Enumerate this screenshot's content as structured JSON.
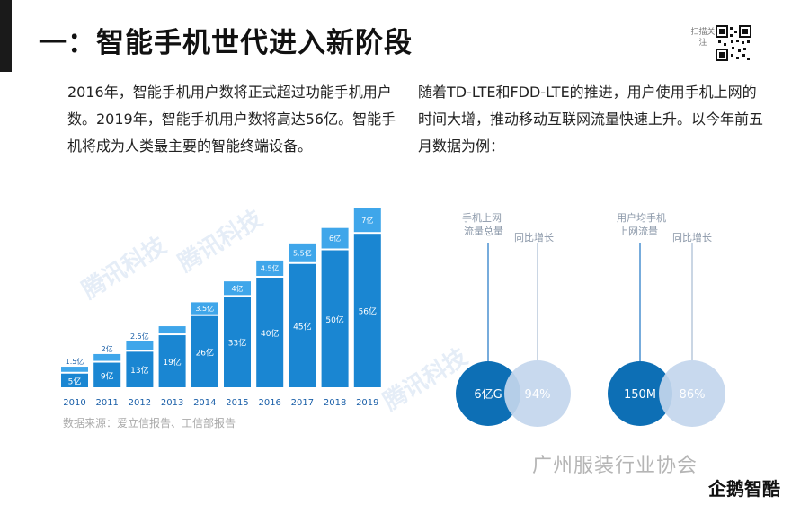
{
  "header": {
    "title": "一：智能手机世代进入新阶段",
    "qr_label": "扫描关注"
  },
  "paragraphs": {
    "left": "2016年，智能手机用户数将正式超过功能手机用户数。2019年，智能手机用户数将高达56亿。智能手机将成为人类最主要的智能终端设备。",
    "right": "随着TD-LTE和FDD-LTE的推进，用户使用手机上网的时间大增，推动移动互联网流量快速上升。以今年前五月数据为例："
  },
  "watermark": {
    "text": "腾讯科技"
  },
  "colors": {
    "bar_dark": "#1a86d2",
    "bar_light": "#3fa6ea",
    "circle_dark": "#0d6fb5",
    "circle_light": "#c3d6ed",
    "line_blue": "#4a90d0",
    "line_gray": "#b9c9dc"
  },
  "chart_data": [
    {
      "type": "bar",
      "categories": [
        "2010",
        "2011",
        "2012",
        "2013",
        "2014",
        "2015",
        "2016",
        "2017",
        "2018",
        "2019"
      ],
      "series": [
        {
          "values": [
            5,
            9,
            13,
            19,
            26,
            33,
            40,
            45,
            50,
            56
          ],
          "labels": [
            "5亿",
            "9亿",
            "13亿",
            "19亿",
            "26亿",
            "33亿",
            "40亿",
            "45亿",
            "50亿",
            "56亿"
          ]
        },
        {
          "values": [
            1.5,
            2,
            2.5,
            null,
            3.5,
            4,
            4.5,
            5.5,
            6,
            7
          ],
          "labels": [
            "1.5亿",
            "2亿",
            "2.5亿",
            "",
            "3.5亿",
            "4亿",
            "4.5亿",
            "5.5亿",
            "6亿",
            "7亿"
          ]
        }
      ],
      "source": "数据来源：爱立信报告、工信部报告"
    },
    {
      "type": "bubble",
      "groups": [
        {
          "items": [
            {
              "label": "手机上网流量总量",
              "value": "6亿G"
            },
            {
              "label": "同比增长",
              "value": "94%"
            }
          ]
        },
        {
          "items": [
            {
              "label": "用户均手机上网流量",
              "value": "150M"
            },
            {
              "label": "同比增长",
              "value": "86%"
            }
          ]
        }
      ]
    }
  ],
  "footer": {
    "brand": "广州服装行业协会",
    "logo": "企鹅智酷"
  }
}
